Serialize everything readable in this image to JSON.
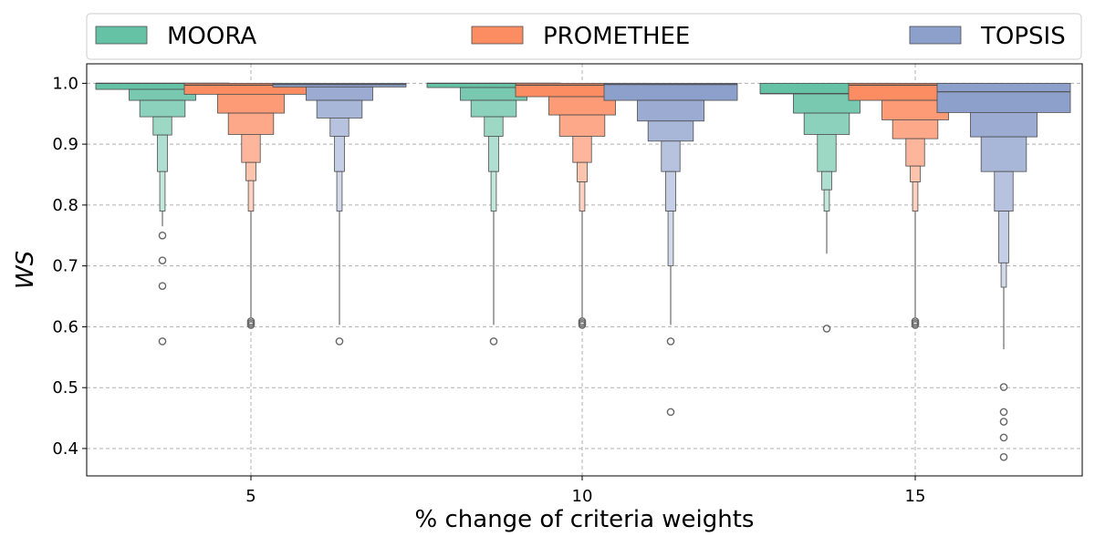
{
  "chart_data": {
    "type": "boxen",
    "xlabel": "% change of criteria weights",
    "ylabel": "WS",
    "ylim": [
      0.355,
      1.032
    ],
    "yticks": [
      0.4,
      0.5,
      0.6,
      0.7,
      0.8,
      0.9,
      1.0
    ],
    "ytick_labels": [
      "0.4",
      "0.5",
      "0.6",
      "0.7",
      "0.8",
      "0.9",
      "1.0"
    ],
    "categories": [
      "5",
      "10",
      "15"
    ],
    "grid": true,
    "legend_placement": "top",
    "series": [
      {
        "name": "MOORA",
        "color": "#66c2a5",
        "groups": [
          {
            "median": 1.0,
            "levels": [
              [
                0.99,
                1.0
              ],
              [
                0.972,
                0.99
              ],
              [
                0.945,
                0.972
              ],
              [
                0.915,
                0.945
              ],
              [
                0.855,
                0.915
              ],
              [
                0.79,
                0.855
              ]
            ],
            "whisker_low": 0.765,
            "outliers": [
              0.75,
              0.709,
              0.667,
              0.576
            ]
          },
          {
            "median": 1.0,
            "levels": [
              [
                0.993,
                1.0
              ],
              [
                0.972,
                0.993
              ],
              [
                0.945,
                0.972
              ],
              [
                0.913,
                0.945
              ],
              [
                0.855,
                0.913
              ],
              [
                0.79,
                0.855
              ]
            ],
            "whisker_low": 0.603,
            "outliers": [
              0.576
            ]
          },
          {
            "median": 0.983,
            "levels": [
              [
                0.983,
                1.0
              ],
              [
                0.951,
                0.983
              ],
              [
                0.916,
                0.951
              ],
              [
                0.855,
                0.916
              ],
              [
                0.825,
                0.855
              ],
              [
                0.79,
                0.825
              ]
            ],
            "whisker_low": 0.72,
            "outliers": [
              0.597
            ]
          }
        ]
      },
      {
        "name": "PROMETHEE",
        "color": "#fc8d62",
        "groups": [
          {
            "median": 0.997,
            "levels": [
              [
                0.982,
                1.0
              ],
              [
                0.951,
                0.982
              ],
              [
                0.916,
                0.951
              ],
              [
                0.87,
                0.916
              ],
              [
                0.84,
                0.87
              ],
              [
                0.79,
                0.84
              ]
            ],
            "whisker_low": 0.615,
            "outliers": [
              0.609,
              0.606,
              0.603
            ]
          },
          {
            "median": 0.997,
            "levels": [
              [
                0.978,
                1.0
              ],
              [
                0.948,
                0.978
              ],
              [
                0.913,
                0.948
              ],
              [
                0.87,
                0.913
              ],
              [
                0.838,
                0.87
              ],
              [
                0.79,
                0.838
              ]
            ],
            "whisker_low": 0.615,
            "outliers": [
              0.609,
              0.606,
              0.603
            ]
          },
          {
            "median": 0.997,
            "levels": [
              [
                0.972,
                1.0
              ],
              [
                0.94,
                0.972
              ],
              [
                0.909,
                0.94
              ],
              [
                0.864,
                0.909
              ],
              [
                0.838,
                0.864
              ],
              [
                0.79,
                0.838
              ]
            ],
            "whisker_low": 0.615,
            "outliers": [
              0.609,
              0.606,
              0.603
            ]
          }
        ]
      },
      {
        "name": "TOPSIS",
        "color": "#8da0cb",
        "groups": [
          {
            "median": 0.998,
            "levels": [
              [
                0.994,
                1.0
              ],
              [
                0.972,
                0.994
              ],
              [
                0.943,
                0.972
              ],
              [
                0.913,
                0.943
              ],
              [
                0.855,
                0.913
              ],
              [
                0.79,
                0.855
              ]
            ],
            "whisker_low": 0.603,
            "outliers": [
              0.576
            ]
          },
          {
            "median": 0.998,
            "levels": [
              [
                0.972,
                1.0
              ],
              [
                0.938,
                0.972
              ],
              [
                0.905,
                0.938
              ],
              [
                0.855,
                0.905
              ],
              [
                0.79,
                0.855
              ],
              [
                0.7,
                0.79
              ]
            ],
            "whisker_low": 0.603,
            "outliers": [
              0.576,
              0.46
            ]
          },
          {
            "median": 0.986,
            "levels": [
              [
                0.952,
                1.0
              ],
              [
                0.912,
                0.952
              ],
              [
                0.855,
                0.912
              ],
              [
                0.79,
                0.855
              ],
              [
                0.705,
                0.79
              ],
              [
                0.665,
                0.705
              ]
            ],
            "whisker_low": 0.563,
            "outliers": [
              0.501,
              0.46,
              0.444,
              0.418,
              0.386
            ]
          }
        ]
      }
    ]
  }
}
